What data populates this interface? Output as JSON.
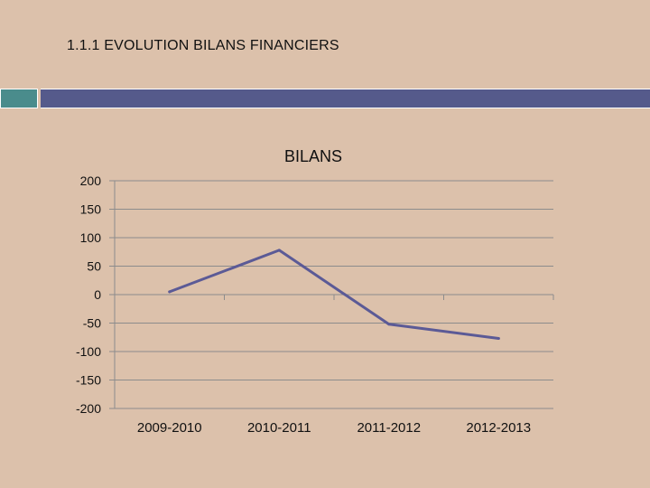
{
  "slide": {
    "title": "1.1.1 EVOLUTION BILANS FINANCIERS"
  },
  "colors": {
    "background": "#dcc1ab",
    "accent_teal": "#4a8c8c",
    "accent_blue": "#555a8b",
    "line": "#5b5a96",
    "grid": "#8c8c8c"
  },
  "chart_data": {
    "type": "line",
    "title": "BILANS",
    "xlabel": "",
    "ylabel": "",
    "categories": [
      "2009-2010",
      "2010-2011",
      "2011-2012",
      "2012-2013"
    ],
    "values": [
      5,
      78,
      -52,
      -77
    ],
    "ylim": [
      -200,
      200
    ],
    "yticks": [
      200,
      150,
      100,
      50,
      0,
      -50,
      -100,
      -150,
      -200
    ],
    "ytick_labels": [
      "200",
      "150",
      "100",
      "50",
      "0",
      "-50",
      "-100",
      "-150",
      "-200"
    ],
    "grid": true,
    "legend": "none"
  }
}
